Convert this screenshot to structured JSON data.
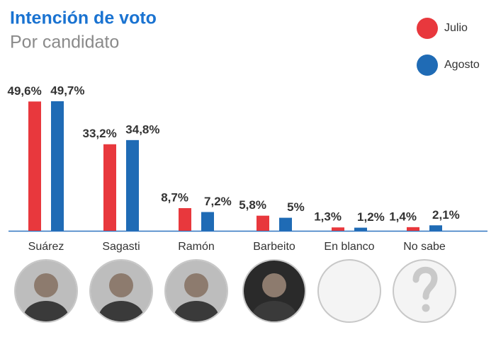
{
  "chart_data": {
    "type": "bar",
    "title": "Intención de voto",
    "subtitle": "Por candidato",
    "categories": [
      "Suárez",
      "Sagasti",
      "Ramón",
      "Barbeito",
      "En blanco",
      "No sabe"
    ],
    "series": [
      {
        "name": "Julio",
        "color": "#e8383d",
        "values": [
          49.6,
          33.2,
          8.7,
          5.8,
          1.3,
          1.4
        ],
        "value_labels": [
          "49,6%",
          "33,2%",
          "8,7%",
          "5,8%",
          "1,3%",
          "1,4%"
        ]
      },
      {
        "name": "Agosto",
        "color": "#1f6bb5",
        "values": [
          49.7,
          34.8,
          7.2,
          5,
          1.2,
          2.1
        ],
        "value_labels": [
          "49,7%",
          "34,8%",
          "7,2%",
          "5%",
          "1,2%",
          "2,1%"
        ]
      }
    ],
    "legend": "top-right"
  }
}
